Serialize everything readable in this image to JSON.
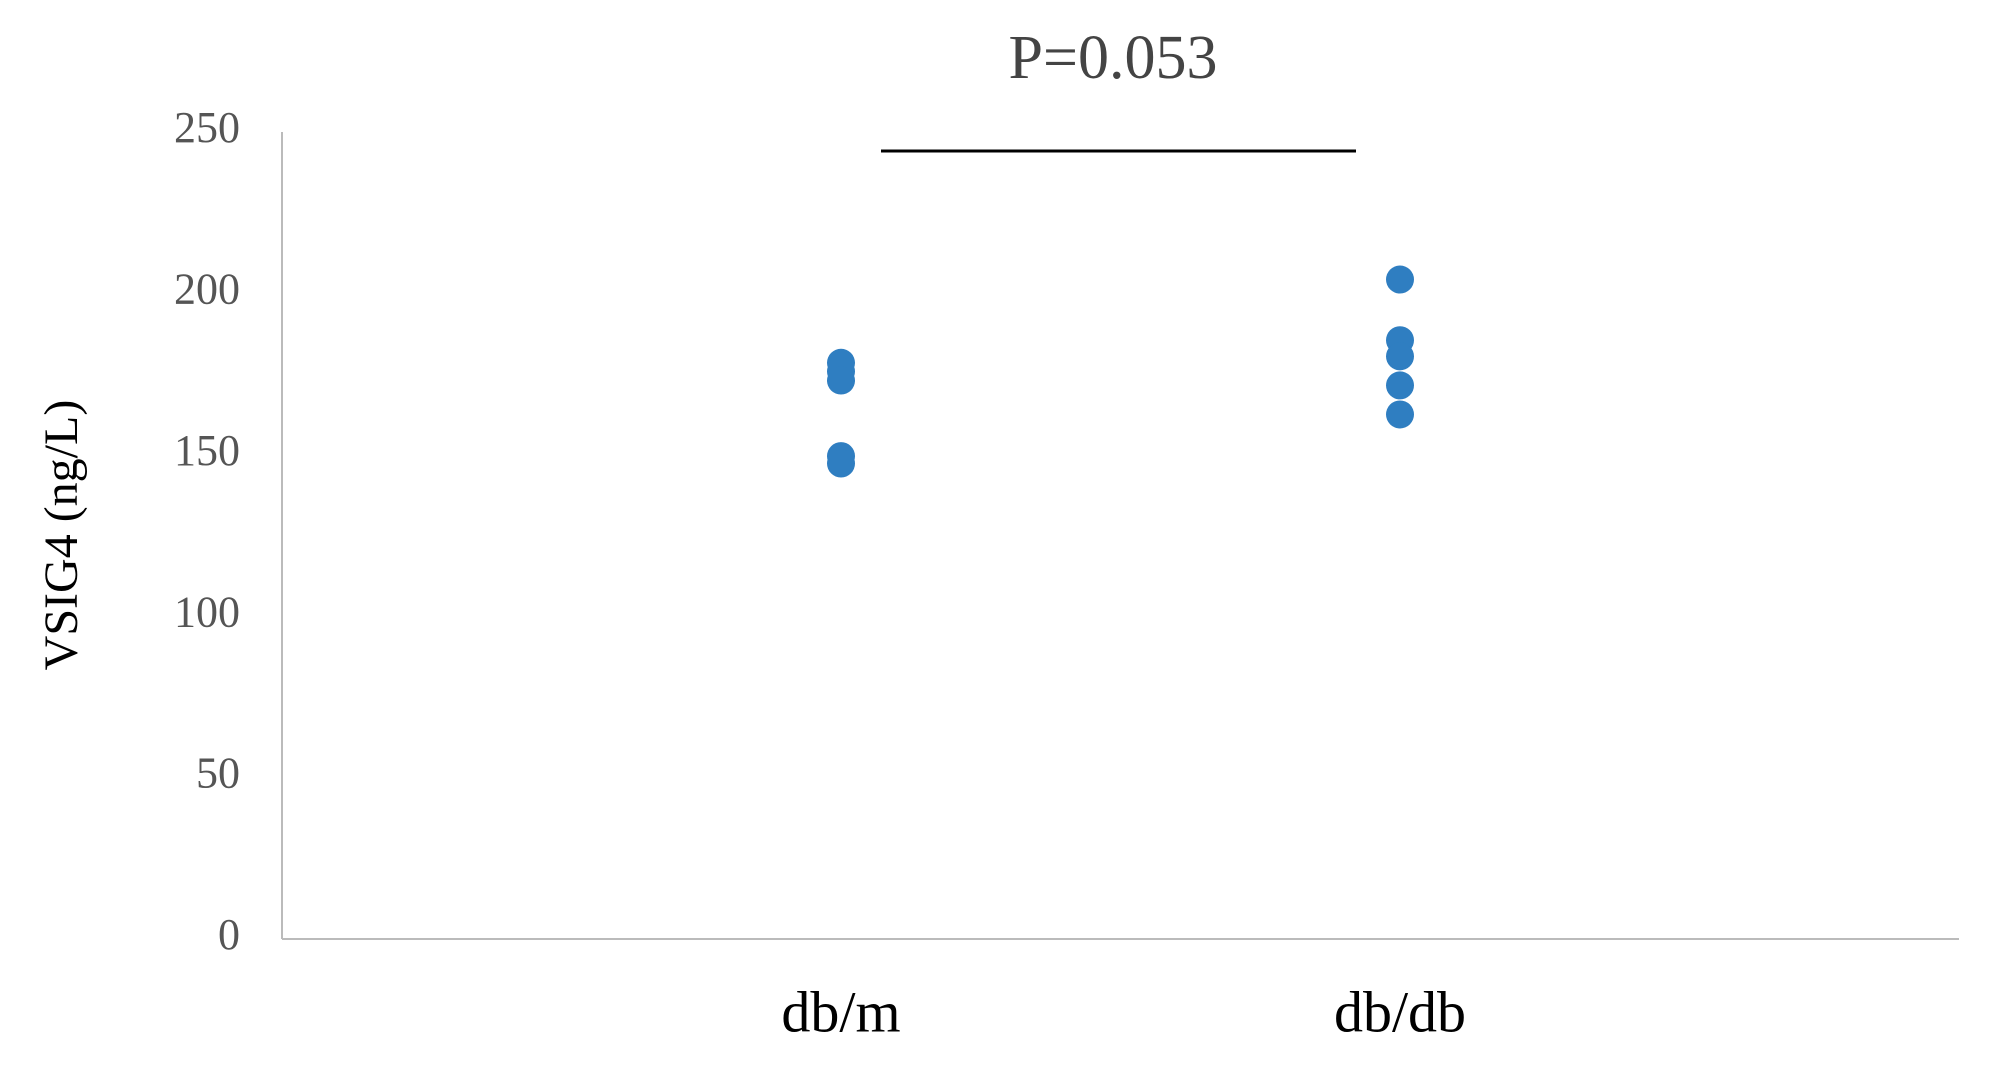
{
  "chart_data": {
    "type": "strip",
    "y_label": "VSIG4 (ng/L)",
    "annotation": "P=0.053",
    "categories": [
      "db/m",
      "db/db"
    ],
    "values": [
      [
        178.5,
        175.8,
        173,
        149.6,
        147.3
      ],
      [
        204.3,
        185.5,
        180.5,
        171.5,
        162.5
      ]
    ],
    "color": "#2f7ec1",
    "ylim": [
      0,
      250
    ],
    "yticks": [
      0,
      50,
      100,
      150,
      200,
      250
    ],
    "grid": false
  }
}
